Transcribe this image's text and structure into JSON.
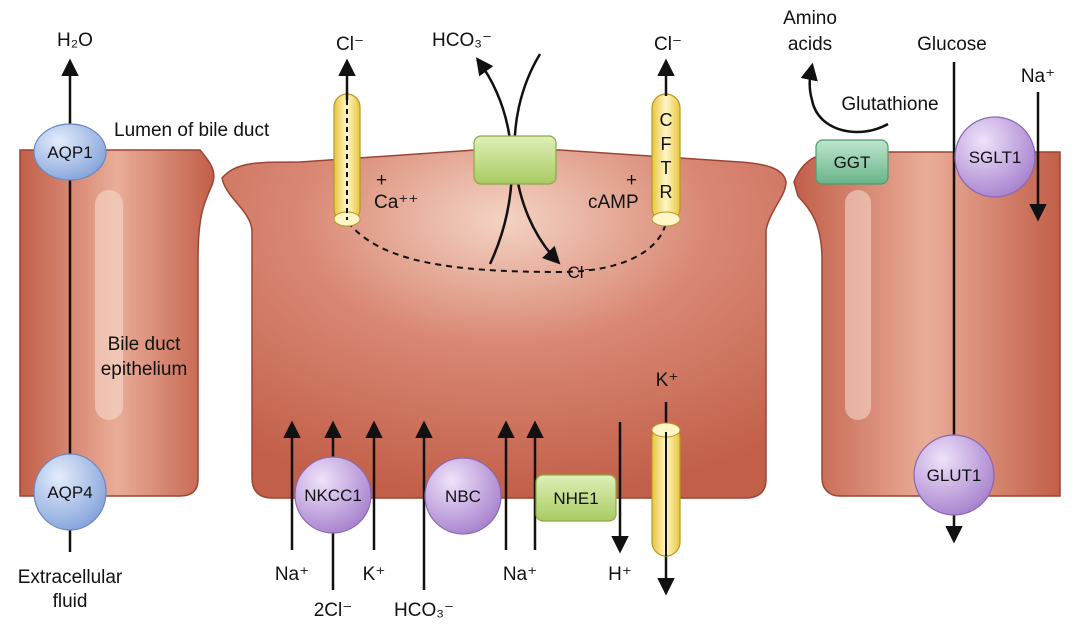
{
  "colors": {
    "cell_fill": "#c96a55",
    "cell_stroke": "#9c4433",
    "cell_highlight": "#f3d1c2",
    "aqp": "#8fb0e6",
    "purple": "#b58ad9",
    "green_exchanger": "#b9d77a",
    "ggt": "#7fc8a0",
    "channel": "#f3df6e"
  },
  "labels": {
    "water": "H₂O",
    "lumen": "Lumen of bile duct",
    "epithelium_line1": "Bile duct",
    "epithelium_line2": "epithelium",
    "extracellular_line1": "Extracellular",
    "extracellular_line2": "fluid",
    "cl_left": "Cl⁻",
    "hco3_top": "HCO₃⁻",
    "cl_right": "Cl⁻",
    "amino_line1": "Amino",
    "amino_line2": "acids",
    "glucose": "Glucose",
    "na_top": "Na⁺",
    "glutathione": "Glutathione",
    "plus_ca": "+",
    "ca": "Ca⁺⁺",
    "plus_camp": "+",
    "camp": "cAMP",
    "cl_inside": "Cl⁻",
    "k_top": "K⁺",
    "na_bottom1": "Na⁺",
    "two_cl": "2Cl⁻",
    "k_bottom": "K⁺",
    "hco3_bottom": "HCO₃⁻",
    "na_bottom2": "Na⁺",
    "h_bottom": "H⁺"
  },
  "proteins": {
    "aqp1": "AQP1",
    "aqp4": "AQP4",
    "nkcc1": "NKCC1",
    "nbc": "NBC",
    "nhe1": "NHE1",
    "ggt": "GGT",
    "sglt1": "SGLT1",
    "glut1": "GLUT1"
  },
  "cftr_letters": [
    "C",
    "F",
    "T",
    "R"
  ]
}
